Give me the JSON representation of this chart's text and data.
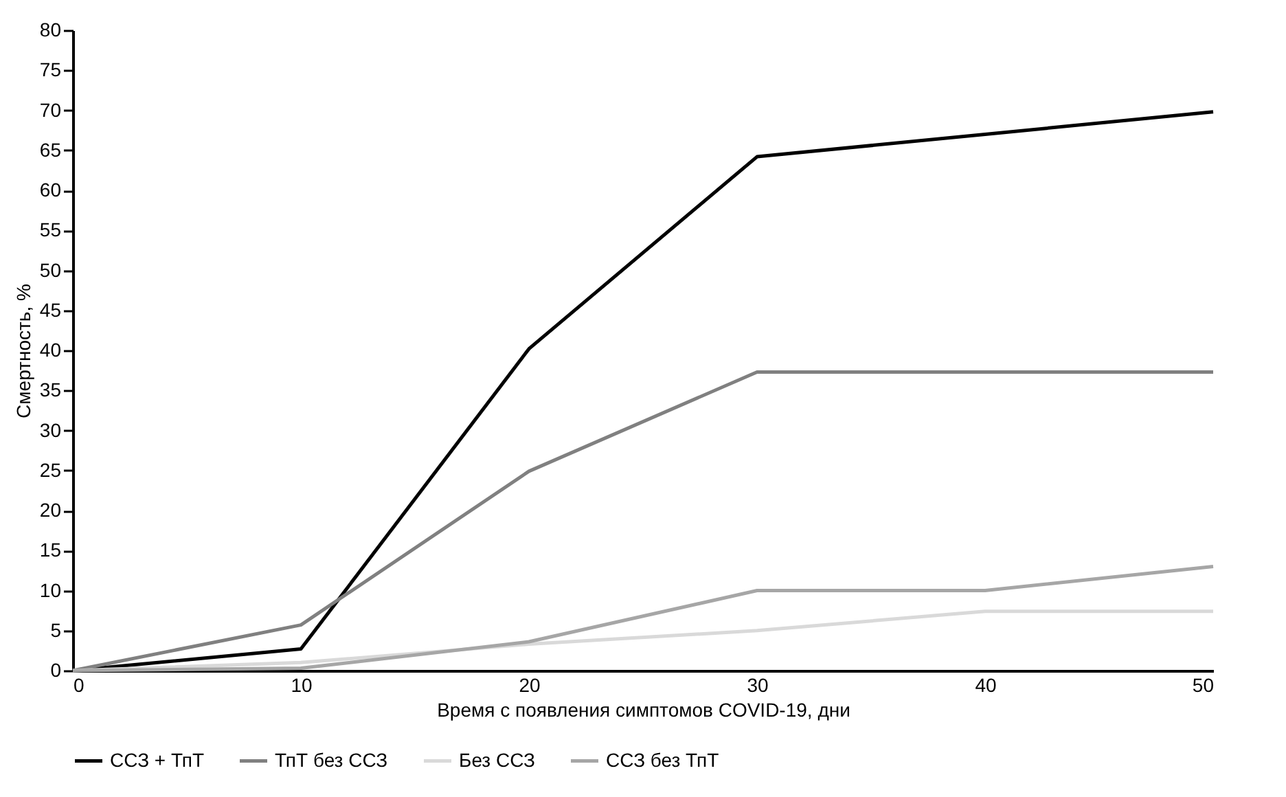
{
  "chart_data": {
    "type": "line",
    "xlabel": "Время с появления симптомов COVID-19, дни",
    "ylabel": "Смертность, %",
    "x": [
      0,
      10,
      20,
      30,
      40,
      50
    ],
    "series": [
      {
        "name": "ССЗ + ТпТ",
        "color": "#000000",
        "values": [
          0,
          2.7,
          40.2,
          64.2,
          67,
          69.8
        ]
      },
      {
        "name": "ТпТ без ССЗ",
        "color": "#808080",
        "values": [
          0,
          5.7,
          24.9,
          37.3,
          37.3,
          37.3
        ]
      },
      {
        "name": "Без ССЗ",
        "color": "#d9d9d9",
        "values": [
          0,
          1,
          3.3,
          5,
          7.4,
          7.4
        ]
      },
      {
        "name": "ССЗ без ТпТ",
        "color": "#a6a6a6",
        "values": [
          0,
          0.3,
          3.6,
          10,
          10,
          13
        ]
      }
    ],
    "xlim": [
      0,
      50
    ],
    "xticks": [
      0,
      10,
      20,
      30,
      40,
      50
    ],
    "ylim": [
      0,
      80
    ],
    "yticks": [
      0,
      5,
      10,
      15,
      20,
      25,
      30,
      35,
      40,
      45,
      50,
      55,
      60,
      65,
      70,
      75,
      80
    ],
    "grid": false,
    "legend": "bottom",
    "marker": "none",
    "line_style": "solid"
  }
}
